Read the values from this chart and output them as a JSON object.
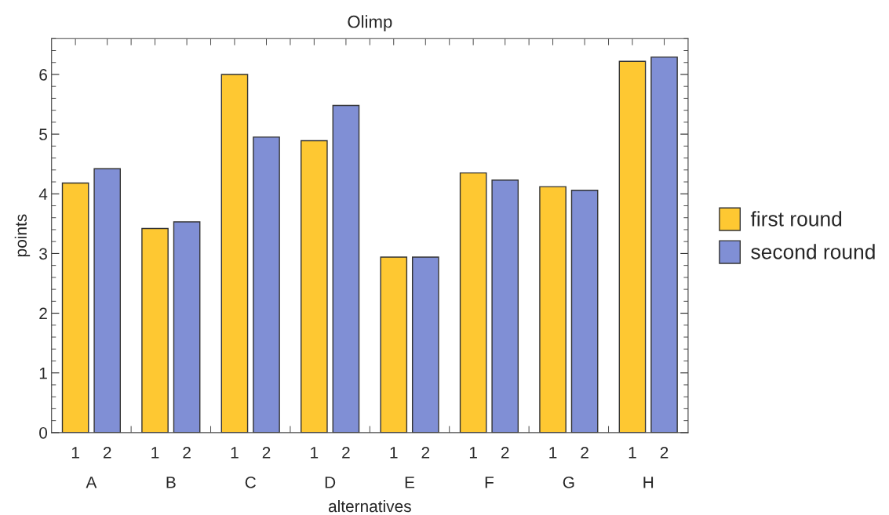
{
  "chart_data": {
    "type": "bar",
    "title": "Olimp",
    "xlabel": "alternatives",
    "ylabel": "points",
    "categories": [
      "A",
      "B",
      "C",
      "D",
      "E",
      "F",
      "G",
      "H"
    ],
    "series": [
      {
        "name": "first round",
        "color": "#fec832",
        "values": [
          4.18,
          3.42,
          6.0,
          4.89,
          2.94,
          4.35,
          4.12,
          6.22
        ]
      },
      {
        "name": "second round",
        "color": "#808fd5",
        "values": [
          4.42,
          3.53,
          4.95,
          5.48,
          2.94,
          4.23,
          4.06,
          6.29
        ]
      }
    ],
    "annotations": [
      "1",
      "2",
      "1",
      "2",
      "1",
      "2",
      "1",
      "2",
      "1",
      "2",
      "1",
      "2",
      "1",
      "2",
      "1",
      "2"
    ],
    "ylim": [
      0,
      6.6
    ],
    "yticks": [
      0,
      1,
      2,
      3,
      4,
      5,
      6
    ],
    "grid": false,
    "legend": "right"
  }
}
